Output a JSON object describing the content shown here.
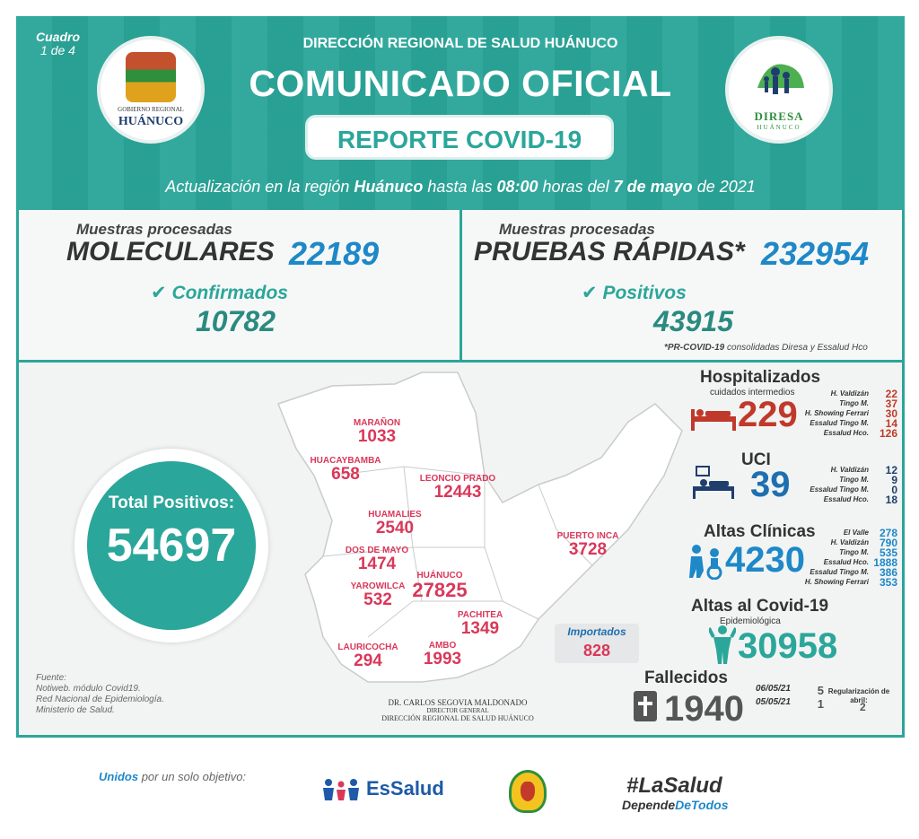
{
  "header": {
    "cuadro": "Cuadro",
    "cuadro_num": "1 de 4",
    "subtitle": "DIRECCIÓN REGIONAL DE SALUD HUÁNUCO",
    "title": "COMUNICADO OFICIAL",
    "badge": "REPORTE COVID-19",
    "update_prefix": "Actualización en la región",
    "update_region": "Huánuco",
    "update_mid": "hasta las",
    "update_time": "08:00",
    "update_mid2": "horas del",
    "update_date": "7 de mayo",
    "update_suffix": "de 2021",
    "logo_left_line1": "GOBIERNO REGIONAL",
    "logo_left_line2": "HUÁNUCO",
    "logo_right_line1": "DIRESA",
    "logo_right_line2": "HUÁNUCO"
  },
  "molecular": {
    "caption": "Muestras procesadas",
    "label": "MOLECULARES",
    "value": "22189",
    "confirmed_label": "Confirmados",
    "confirmed_value": "10782"
  },
  "rapid": {
    "caption": "Muestras procesadas",
    "label": "PRUEBAS RÁPIDAS*",
    "value": "232954",
    "positive_label": "Positivos",
    "positive_value": "43915",
    "note_bold": "*PR-COVID-19",
    "note_rest": "consolidadas Diresa y Essalud Hco"
  },
  "total": {
    "label": "Total Positivos:",
    "value": "54697"
  },
  "provinces": [
    {
      "name": "MARAÑON",
      "value": "1033"
    },
    {
      "name": "HUACAYBAMBA",
      "value": "658"
    },
    {
      "name": "LEONCIO PRADO",
      "value": "12443"
    },
    {
      "name": "HUAMALIES",
      "value": "2540"
    },
    {
      "name": "PUERTO INCA",
      "value": "3728"
    },
    {
      "name": "DOS DE MAYO",
      "value": "1474"
    },
    {
      "name": "YAROWILCA",
      "value": "532"
    },
    {
      "name": "HUÁNUCO",
      "value": "27825"
    },
    {
      "name": "PACHITEA",
      "value": "1349"
    },
    {
      "name": "LAURICOCHA",
      "value": "294"
    },
    {
      "name": "AMBO",
      "value": "1993"
    }
  ],
  "imported": {
    "label": "Importados",
    "value": "828"
  },
  "source": {
    "title": "Fuente:",
    "lines": [
      "Notiweb. módulo Covid19.",
      "Red Nacional de Epidemiología.",
      "Ministerio de Salud."
    ]
  },
  "signature": {
    "name": "DR. CARLOS SEGOVIA MALDONADO",
    "role": "DIRECTOR GENERAL",
    "org": "DIRECCIÓN REGIONAL DE SALUD HUÁNUCO"
  },
  "hospitalized": {
    "title": "Hospitalizados",
    "subtitle": "cuidados intermedios",
    "value": "229",
    "rows": [
      {
        "name": "H. Valdizán",
        "value": "22"
      },
      {
        "name": "Tingo M.",
        "value": "37"
      },
      {
        "name": "H. Showing Ferrari",
        "value": "30"
      },
      {
        "name": "Essalud Tingo M.",
        "value": "14"
      },
      {
        "name": "Essalud Hco.",
        "value": "126"
      }
    ]
  },
  "uci": {
    "title": "UCI",
    "value": "39",
    "rows": [
      {
        "name": "H. Valdizán",
        "value": "12"
      },
      {
        "name": "Tingo M.",
        "value": "9"
      },
      {
        "name": "Essalud Tingo M.",
        "value": "0"
      },
      {
        "name": "Essalud Hco.",
        "value": "18"
      }
    ]
  },
  "altas_clinicas": {
    "title": "Altas Clínicas",
    "value": "4230",
    "rows": [
      {
        "name": "El Valle",
        "value": "278"
      },
      {
        "name": "H. Valdizán",
        "value": "790"
      },
      {
        "name": "Tingo M.",
        "value": "535"
      },
      {
        "name": "Essalud Hco.",
        "value": "1888"
      },
      {
        "name": "Essalud Tingo M.",
        "value": "386"
      },
      {
        "name": "H. Showing Ferrari",
        "value": "353"
      }
    ]
  },
  "altas_covid": {
    "title": "Altas al Covid-19",
    "subtitle": "Epidemiológica",
    "value": "30958"
  },
  "deaths": {
    "title": "Fallecidos",
    "value": "1940",
    "rows": [
      {
        "date": "06/05/21",
        "value": "5"
      },
      {
        "date": "05/05/21",
        "value": "1"
      }
    ],
    "reg_label": "Regularización de abril:",
    "reg_value": "2"
  },
  "footer": {
    "unidos_bold": "Unidos",
    "unidos_rest": "por un solo objetivo:",
    "essalud": "EsSalud",
    "hashtag": "#LaSalud",
    "depende_a": "Depende",
    "depende_b": "DeTodos"
  },
  "colors": {
    "teal": "#2ba69a",
    "blue": "#1e88c8",
    "red": "#c0392b",
    "pink": "#d9385a",
    "dark": "#333333"
  }
}
